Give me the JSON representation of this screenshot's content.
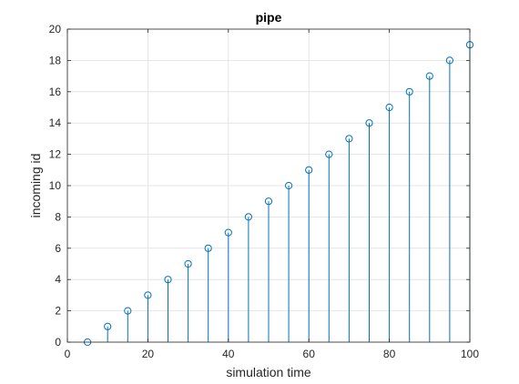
{
  "chart_data": {
    "type": "stem",
    "title": "pipe",
    "xlabel": "simulation time",
    "ylabel": "incoming id",
    "xlim": [
      0,
      100
    ],
    "ylim": [
      0,
      20
    ],
    "xticks": [
      0,
      20,
      40,
      60,
      80,
      100
    ],
    "yticks": [
      0,
      2,
      4,
      6,
      8,
      10,
      12,
      14,
      16,
      18,
      20
    ],
    "grid": true,
    "series": [
      {
        "color": "#0072BD",
        "marker": "circle-open",
        "x": [
          5,
          10,
          15,
          20,
          25,
          30,
          35,
          40,
          45,
          50,
          55,
          60,
          65,
          70,
          75,
          80,
          85,
          90,
          95,
          100
        ],
        "y": [
          0,
          1,
          2,
          3,
          4,
          5,
          6,
          7,
          8,
          9,
          10,
          11,
          12,
          13,
          14,
          15,
          16,
          17,
          18,
          19
        ]
      }
    ]
  }
}
